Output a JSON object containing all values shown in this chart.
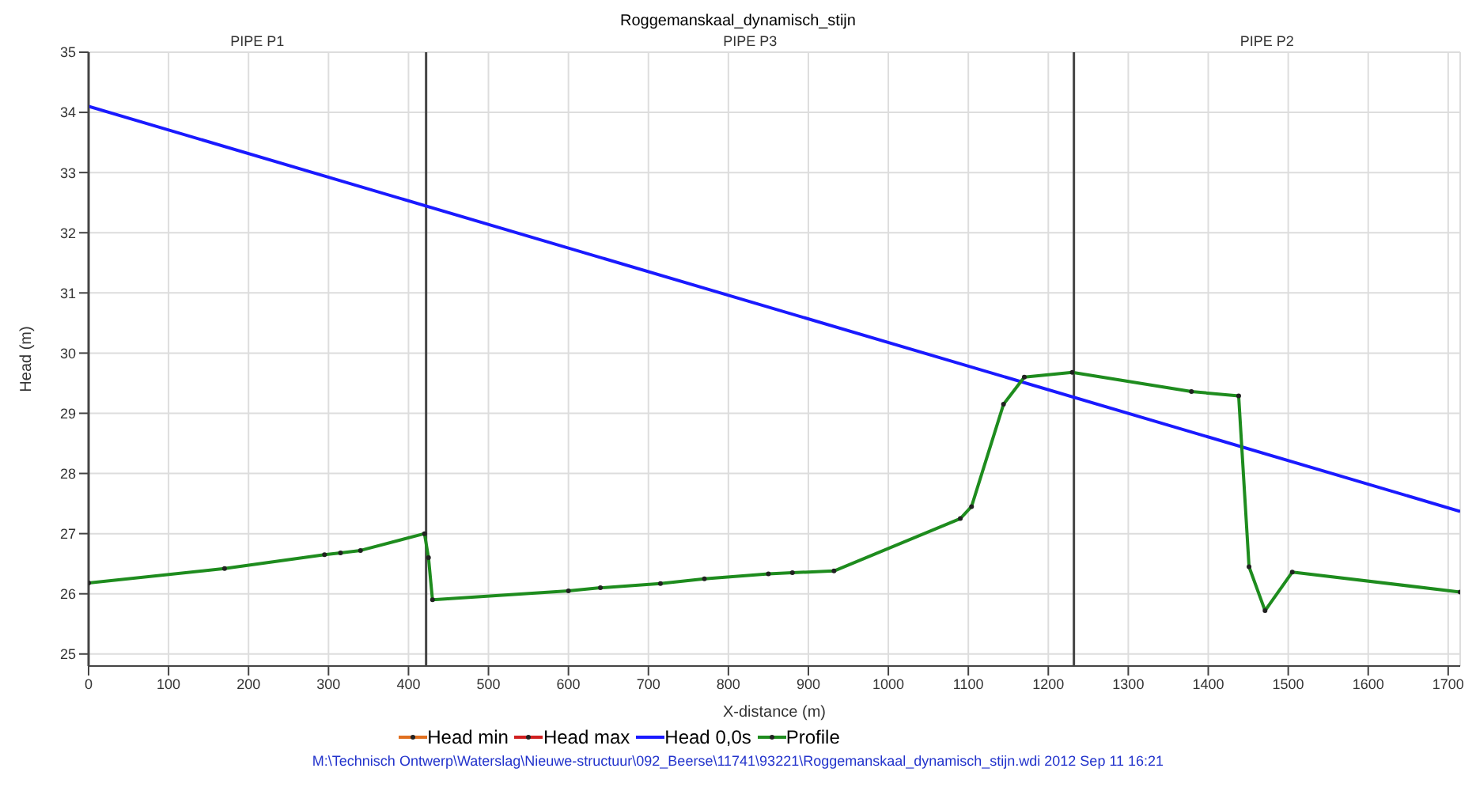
{
  "chart_data": {
    "type": "line",
    "title": "Roggemanskaal_dynamisch_stijn",
    "xlabel": "X-distance (m)",
    "ylabel": "Head (m)",
    "xlim": [
      0,
      1715
    ],
    "xticks": [
      0,
      100,
      200,
      300,
      400,
      500,
      600,
      700,
      800,
      900,
      1000,
      1100,
      1200,
      1300,
      1400,
      1500,
      1600,
      1700
    ],
    "ylim": [
      24.8,
      35
    ],
    "yticks": [
      25,
      26,
      27,
      28,
      29,
      30,
      31,
      32,
      33,
      34,
      35
    ],
    "grid": true,
    "legend": "bottom",
    "marker": "circle",
    "line_style": "solid",
    "series": [
      {
        "name": "Head min",
        "color": "#e07020"
      },
      {
        "name": "Head max",
        "color": "#d02020"
      },
      {
        "name": "Head 0,0s",
        "color": "#1a1aff",
        "marker": "none",
        "x": [
          0,
          1715
        ],
        "values": [
          34.1,
          27.37
        ]
      },
      {
        "name": "Profile",
        "color": "#1e8c1e",
        "x": [
          0,
          170,
          295,
          315,
          340,
          420,
          425,
          430,
          600,
          640,
          715,
          770,
          850,
          880,
          932,
          1090,
          1104,
          1144,
          1170,
          1230,
          1379,
          1438,
          1451,
          1471,
          1505,
          1715
        ],
        "values": [
          26.18,
          26.42,
          26.65,
          26.68,
          26.72,
          27.0,
          26.6,
          25.9,
          26.05,
          26.1,
          26.17,
          26.25,
          26.33,
          26.35,
          26.38,
          27.25,
          27.45,
          29.15,
          29.6,
          29.68,
          29.36,
          29.29,
          26.45,
          25.72,
          26.36,
          26.03
        ]
      }
    ],
    "ref_lines": [
      {
        "axis": "x",
        "value": 0,
        "color": "#444444"
      },
      {
        "axis": "x",
        "value": 422,
        "color": "#444444"
      },
      {
        "axis": "x",
        "value": 1232,
        "color": "#444444"
      }
    ],
    "annotations": [
      "PIPE P1",
      "PIPE P3",
      "PIPE P2",
      "M:\\Technisch Ontwerp\\Waterslag\\Nieuwe-structuur\\092_Beerse\\11741\\93221\\Roggemanskaal_dynamisch_stijn.wdi 2012 Sep 11  16:21"
    ]
  }
}
